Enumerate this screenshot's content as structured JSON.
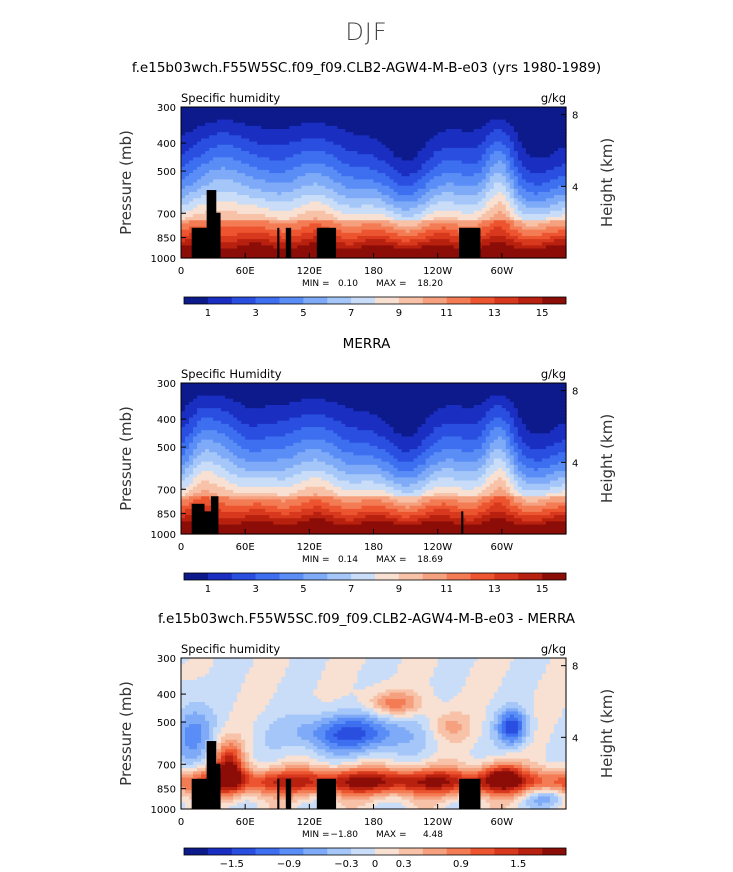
{
  "figure": {
    "title": "DJF"
  },
  "chart_data": [
    {
      "type": "heatmap",
      "title": "f.e15b03wch.F55W5SC.f09_f09.CLB2-AGW4-M-B-e03 (yrs 1980-1989)",
      "subtitle_left": "Specific humidity",
      "subtitle_right": "g/kg",
      "ylabel": "Pressure (mb)",
      "ylabel_right": "Height (km)",
      "x_ticks": [
        "0",
        "60E",
        "120E",
        "180",
        "120W",
        "60W"
      ],
      "x_tick_values": [
        0,
        60,
        120,
        180,
        240,
        300
      ],
      "xlim": [
        0,
        360
      ],
      "y_ticks": [
        "300",
        "400",
        "500",
        "700",
        "850",
        "1000"
      ],
      "y_tick_values": [
        300,
        400,
        500,
        700,
        850,
        1000
      ],
      "ylim": [
        1000,
        300
      ],
      "y_scale": "log",
      "right_ticks": [
        "8",
        "4"
      ],
      "right_tick_values": [
        8,
        4
      ],
      "min_label": "MIN =",
      "min_value": "0.10",
      "max_label": "MAX =",
      "max_value": "18.20",
      "colorbar_labels": [
        "1",
        "3",
        "5",
        "7",
        "9",
        "11",
        "13",
        "15"
      ],
      "colorbar_values": [
        1,
        3,
        5,
        7,
        9,
        11,
        13,
        15
      ],
      "colorbar_range": [
        0,
        16
      ],
      "kind": "abs"
    },
    {
      "type": "heatmap",
      "title": "MERRA",
      "subtitle_left": "Specific Humidity",
      "subtitle_right": "g/kg",
      "ylabel": "Pressure (mb)",
      "ylabel_right": "Height (km)",
      "x_ticks": [
        "0",
        "60E",
        "120E",
        "180",
        "120W",
        "60W"
      ],
      "x_tick_values": [
        0,
        60,
        120,
        180,
        240,
        300
      ],
      "xlim": [
        0,
        360
      ],
      "y_ticks": [
        "300",
        "400",
        "500",
        "700",
        "850",
        "1000"
      ],
      "y_tick_values": [
        300,
        400,
        500,
        700,
        850,
        1000
      ],
      "ylim": [
        1000,
        300
      ],
      "y_scale": "log",
      "right_ticks": [
        "8",
        "4"
      ],
      "right_tick_values": [
        8,
        4
      ],
      "min_label": "MIN =",
      "min_value": "0.14",
      "max_label": "MAX =",
      "max_value": "18.69",
      "colorbar_labels": [
        "1",
        "3",
        "5",
        "7",
        "9",
        "11",
        "13",
        "15"
      ],
      "colorbar_values": [
        1,
        3,
        5,
        7,
        9,
        11,
        13,
        15
      ],
      "colorbar_range": [
        0,
        16
      ],
      "kind": "abs"
    },
    {
      "type": "heatmap",
      "title": "f.e15b03wch.F55W5SC.f09_f09.CLB2-AGW4-M-B-e03 - MERRA",
      "subtitle_left": "Specific humidity",
      "subtitle_right": "g/kg",
      "ylabel": "Pressure (mb)",
      "ylabel_right": "Height (km)",
      "x_ticks": [
        "0",
        "60E",
        "120E",
        "180",
        "120W",
        "60W"
      ],
      "x_tick_values": [
        0,
        60,
        120,
        180,
        240,
        300
      ],
      "xlim": [
        0,
        360
      ],
      "y_ticks": [
        "300",
        "400",
        "500",
        "700",
        "850",
        "1000"
      ],
      "y_tick_values": [
        300,
        400,
        500,
        700,
        850,
        1000
      ],
      "ylim": [
        1000,
        300
      ],
      "y_scale": "log",
      "right_ticks": [
        "8",
        "4"
      ],
      "right_tick_values": [
        8,
        4
      ],
      "min_label": "MIN =",
      "min_value": "−1.80",
      "max_label": "MAX =",
      "max_value": "4.48",
      "colorbar_labels": [
        "−1.5",
        "−0.9",
        "−0.3",
        "0",
        "0.3",
        "0.9",
        "1.5"
      ],
      "colorbar_values": [
        -1.5,
        -0.9,
        -0.3,
        0,
        0.3,
        0.9,
        1.5
      ],
      "colorbar_range": [
        -2.0,
        2.0
      ],
      "kind": "diff"
    }
  ],
  "colorbar_colors": [
    "#0d1a8c",
    "#1a2fc2",
    "#2a4fe0",
    "#3d6ff0",
    "#5a8df5",
    "#7eaaf7",
    "#a4c6f8",
    "#c9ddf8",
    "#f8e0d2",
    "#f7c2a8",
    "#f5a07e",
    "#f37c55",
    "#ec5530",
    "#d8381d",
    "#b8200f",
    "#8c0d08"
  ],
  "topography_color": "#000000"
}
